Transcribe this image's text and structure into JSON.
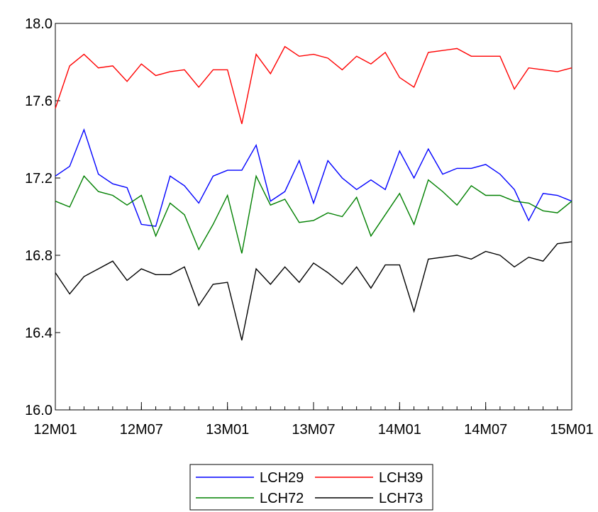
{
  "chart_data": {
    "type": "line",
    "title": "",
    "xlabel": "",
    "ylabel": "",
    "x": [
      "12M01",
      "12M02",
      "12M03",
      "12M04",
      "12M05",
      "12M06",
      "12M07",
      "12M08",
      "12M09",
      "12M10",
      "12M11",
      "12M12",
      "13M01",
      "13M02",
      "13M03",
      "13M04",
      "13M05",
      "13M06",
      "13M07",
      "13M08",
      "13M09",
      "13M10",
      "13M11",
      "13M12",
      "14M01",
      "14M02",
      "14M03",
      "14M04",
      "14M05",
      "14M06",
      "14M07",
      "14M08",
      "14M09",
      "14M10",
      "14M11",
      "14M12",
      "15M01"
    ],
    "x_ticks": [
      "12M01",
      "12M07",
      "13M01",
      "13M07",
      "14M01",
      "14M07",
      "15M01"
    ],
    "y_ticks": [
      "16.0",
      "16.4",
      "16.8",
      "17.2",
      "17.6",
      "18.0"
    ],
    "ylim": [
      16.0,
      18.0
    ],
    "legend_position": "bottom",
    "series": [
      {
        "name": "LCH29",
        "color": "#0000ff",
        "values": [
          17.21,
          17.26,
          17.45,
          17.22,
          17.17,
          17.15,
          16.96,
          16.95,
          17.21,
          17.16,
          17.07,
          17.21,
          17.24,
          17.24,
          17.37,
          17.08,
          17.13,
          17.29,
          17.07,
          17.29,
          17.2,
          17.14,
          17.19,
          17.14,
          17.34,
          17.2,
          17.35,
          17.22,
          17.25,
          17.25,
          17.27,
          17.22,
          17.14,
          16.98,
          17.12,
          17.11,
          17.08
        ]
      },
      {
        "name": "LCH39",
        "color": "#ff0000",
        "values": [
          17.56,
          17.78,
          17.84,
          17.77,
          17.78,
          17.7,
          17.79,
          17.73,
          17.75,
          17.76,
          17.67,
          17.76,
          17.76,
          17.48,
          17.84,
          17.74,
          17.88,
          17.83,
          17.84,
          17.82,
          17.76,
          17.83,
          17.79,
          17.85,
          17.72,
          17.67,
          17.85,
          17.86,
          17.87,
          17.83,
          17.83,
          17.83,
          17.66,
          17.77,
          17.76,
          17.75,
          17.77
        ]
      },
      {
        "name": "LCH72",
        "color": "#008000",
        "values": [
          17.08,
          17.05,
          17.21,
          17.13,
          17.11,
          17.06,
          17.11,
          16.9,
          17.07,
          17.01,
          16.83,
          16.96,
          17.11,
          16.81,
          17.21,
          17.06,
          17.09,
          16.97,
          16.98,
          17.02,
          17.0,
          17.1,
          16.9,
          17.01,
          17.12,
          16.96,
          17.19,
          17.13,
          17.06,
          17.16,
          17.11,
          17.11,
          17.08,
          17.07,
          17.03,
          17.02,
          17.08
        ]
      },
      {
        "name": "LCH73",
        "color": "#000000",
        "values": [
          16.71,
          16.6,
          16.69,
          16.73,
          16.77,
          16.67,
          16.73,
          16.7,
          16.7,
          16.74,
          16.54,
          16.65,
          16.66,
          16.36,
          16.73,
          16.65,
          16.74,
          16.66,
          16.76,
          16.71,
          16.65,
          16.74,
          16.63,
          16.75,
          16.75,
          16.51,
          16.78,
          16.79,
          16.8,
          16.78,
          16.82,
          16.8,
          16.74,
          16.79,
          16.77,
          16.86,
          16.87
        ]
      }
    ]
  }
}
